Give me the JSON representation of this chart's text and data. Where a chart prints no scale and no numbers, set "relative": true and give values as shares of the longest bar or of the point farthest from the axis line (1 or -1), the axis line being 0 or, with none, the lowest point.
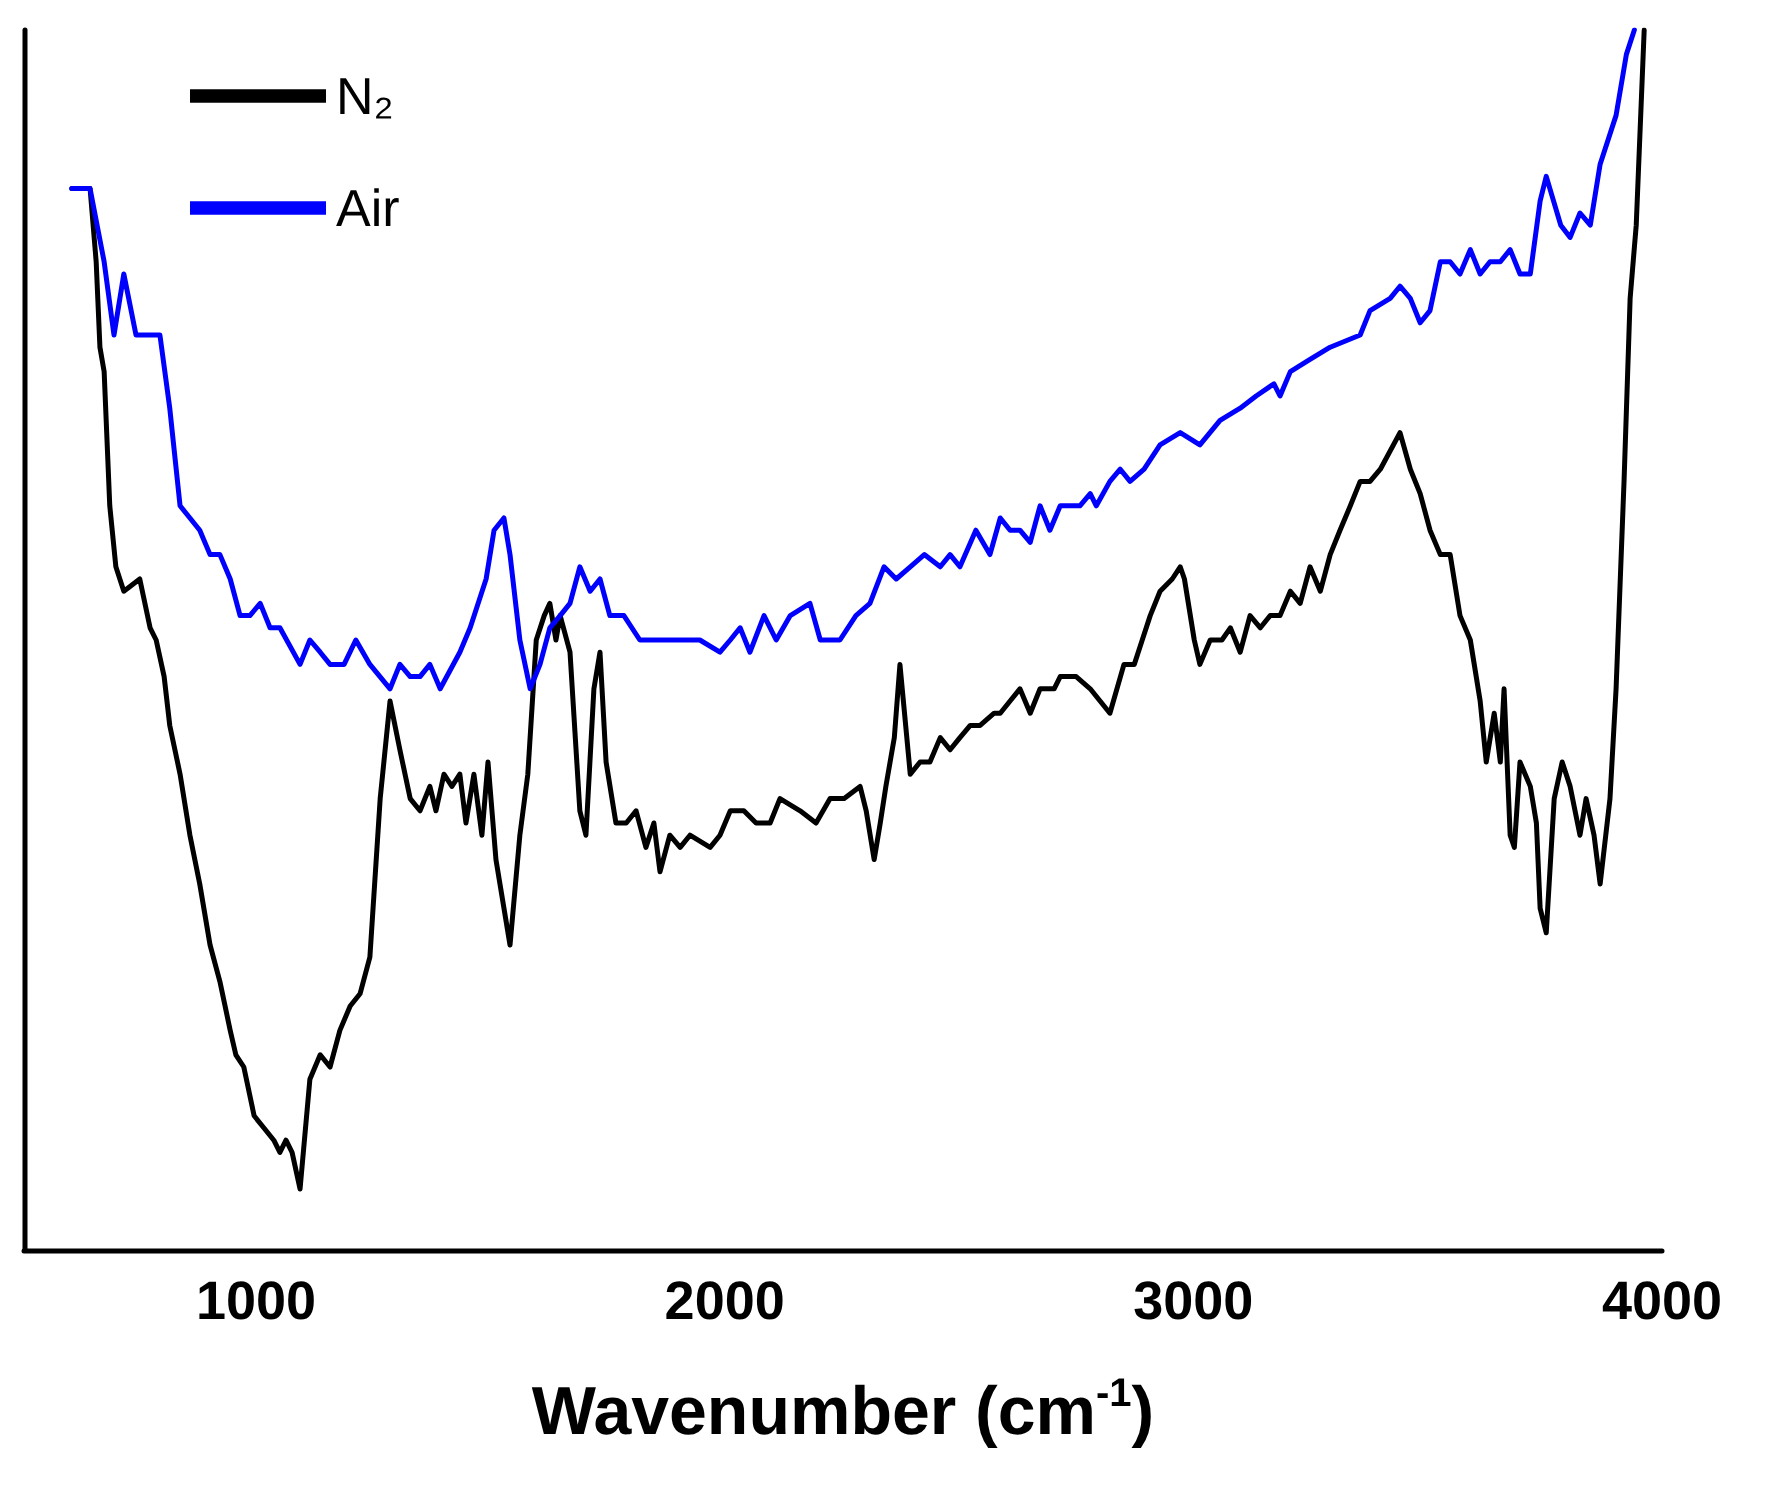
{
  "chart_data": {
    "type": "line",
    "relative": true,
    "xlabel": "Wavenumber (cm$^{-1}$)",
    "xlim": [
      505,
      4000
    ],
    "xticks": [
      1000,
      2000,
      3000,
      4000
    ],
    "legend": "top left",
    "marker": "none",
    "line_style": "solid",
    "grid": false,
    "series": [
      {
        "name": "N₂",
        "color": "#000000",
        "x": [
          607,
          646,
          659,
          667,
          676,
          688,
          701,
          718,
          752,
          774,
          787,
          804,
          816,
          838,
          859,
          880,
          902,
          923,
          945,
          957,
          974,
          996,
          1017,
          1038,
          1051,
          1064,
          1077,
          1094,
          1115,
          1137,
          1158,
          1179,
          1201,
          1222,
          1243,
          1265,
          1286,
          1307,
          1329,
          1350,
          1371,
          1384,
          1401,
          1418,
          1435,
          1448,
          1465,
          1482,
          1495,
          1512,
          1542,
          1563,
          1580,
          1598,
          1615,
          1627,
          1640,
          1649,
          1670,
          1691,
          1704,
          1721,
          1734,
          1747,
          1768,
          1790,
          1811,
          1832,
          1849,
          1862,
          1883,
          1905,
          1926,
          1969,
          1990,
          2012,
          2041,
          2067,
          2097,
          2118,
          2161,
          2195,
          2225,
          2255,
          2289,
          2302,
          2319,
          2332,
          2344,
          2362,
          2374,
          2396,
          2417,
          2438,
          2460,
          2481,
          2502,
          2524,
          2545,
          2575,
          2588,
          2609,
          2630,
          2652,
          2673,
          2703,
          2716,
          2750,
          2780,
          2801,
          2822,
          2852,
          2874,
          2891,
          2908,
          2929,
          2955,
          2972,
          2981,
          3002,
          3014,
          3036,
          3061,
          3079,
          3100,
          3121,
          3143,
          3164,
          3185,
          3207,
          3228,
          3249,
          3271,
          3292,
          3313,
          3335,
          3356,
          3377,
          3399,
          3441,
          3463,
          3484,
          3505,
          3527,
          3548,
          3569,
          3591,
          3612,
          3625,
          3642,
          3655,
          3663,
          3676,
          3685,
          3697,
          3719,
          3732,
          3740,
          3753,
          3770,
          3787,
          3804,
          3825,
          3838,
          3855,
          3868,
          3889,
          3902,
          3919,
          3932,
          3945,
          3962
        ],
        "values": [
          0.87,
          0.87,
          0.81,
          0.74,
          0.72,
          0.61,
          0.56,
          0.54,
          0.55,
          0.51,
          0.5,
          0.47,
          0.43,
          0.39,
          0.34,
          0.3,
          0.25,
          0.22,
          0.18,
          0.16,
          0.15,
          0.11,
          0.1,
          0.09,
          0.08,
          0.09,
          0.08,
          0.05,
          0.14,
          0.16,
          0.15,
          0.18,
          0.2,
          0.21,
          0.24,
          0.37,
          0.45,
          0.41,
          0.37,
          0.36,
          0.38,
          0.36,
          0.39,
          0.38,
          0.39,
          0.35,
          0.39,
          0.34,
          0.4,
          0.32,
          0.25,
          0.34,
          0.39,
          0.5,
          0.52,
          0.53,
          0.5,
          0.52,
          0.49,
          0.36,
          0.34,
          0.46,
          0.49,
          0.4,
          0.35,
          0.35,
          0.36,
          0.33,
          0.35,
          0.31,
          0.34,
          0.33,
          0.34,
          0.33,
          0.34,
          0.36,
          0.36,
          0.35,
          0.35,
          0.37,
          0.36,
          0.35,
          0.37,
          0.37,
          0.38,
          0.36,
          0.32,
          0.35,
          0.38,
          0.42,
          0.48,
          0.39,
          0.4,
          0.4,
          0.42,
          0.41,
          0.42,
          0.43,
          0.43,
          0.44,
          0.44,
          0.45,
          0.46,
          0.44,
          0.46,
          0.46,
          0.47,
          0.47,
          0.46,
          0.45,
          0.44,
          0.48,
          0.48,
          0.5,
          0.52,
          0.54,
          0.55,
          0.56,
          0.55,
          0.5,
          0.48,
          0.5,
          0.5,
          0.51,
          0.49,
          0.52,
          0.51,
          0.52,
          0.52,
          0.54,
          0.53,
          0.56,
          0.54,
          0.57,
          0.59,
          0.61,
          0.63,
          0.63,
          0.64,
          0.67,
          0.64,
          0.62,
          0.59,
          0.57,
          0.57,
          0.52,
          0.5,
          0.45,
          0.4,
          0.44,
          0.4,
          0.46,
          0.34,
          0.33,
          0.4,
          0.38,
          0.35,
          0.28,
          0.26,
          0.37,
          0.4,
          0.38,
          0.34,
          0.37,
          0.34,
          0.3,
          0.37,
          0.46,
          0.63,
          0.78,
          0.84,
          1.0
        ]
      },
      {
        "name": "Air",
        "color": "#0000ff",
        "x": [
          607,
          646,
          676,
          697,
          718,
          744,
          774,
          795,
          816,
          838,
          859,
          880,
          902,
          923,
          945,
          966,
          987,
          1009,
          1030,
          1051,
          1094,
          1115,
          1137,
          1158,
          1188,
          1213,
          1243,
          1286,
          1307,
          1329,
          1350,
          1371,
          1393,
          1435,
          1457,
          1491,
          1508,
          1529,
          1542,
          1563,
          1585,
          1606,
          1627,
          1649,
          1670,
          1691,
          1713,
          1734,
          1755,
          1785,
          1819,
          1862,
          1905,
          1947,
          1990,
          2012,
          2033,
          2054,
          2084,
          2110,
          2140,
          2182,
          2204,
          2246,
          2280,
          2310,
          2340,
          2366,
          2396,
          2426,
          2460,
          2481,
          2502,
          2536,
          2566,
          2588,
          2609,
          2630,
          2652,
          2673,
          2694,
          2716,
          2758,
          2780,
          2793,
          2822,
          2844,
          2865,
          2895,
          2929,
          2972,
          3014,
          3057,
          3100,
          3134,
          3172,
          3185,
          3207,
          3249,
          3292,
          3356,
          3377,
          3420,
          3441,
          3463,
          3484,
          3505,
          3527,
          3548,
          3569,
          3591,
          3612,
          3633,
          3655,
          3676,
          3697,
          3719,
          3740,
          3753,
          3784,
          3804,
          3825,
          3847,
          3868,
          3902,
          3924,
          3941
        ],
        "values": [
          0.87,
          0.87,
          0.81,
          0.75,
          0.8,
          0.75,
          0.75,
          0.75,
          0.69,
          0.61,
          0.6,
          0.59,
          0.57,
          0.57,
          0.55,
          0.52,
          0.52,
          0.53,
          0.51,
          0.51,
          0.48,
          0.5,
          0.49,
          0.48,
          0.48,
          0.5,
          0.48,
          0.46,
          0.48,
          0.47,
          0.47,
          0.48,
          0.46,
          0.49,
          0.51,
          0.55,
          0.59,
          0.6,
          0.57,
          0.5,
          0.46,
          0.48,
          0.51,
          0.52,
          0.53,
          0.56,
          0.54,
          0.55,
          0.52,
          0.52,
          0.5,
          0.5,
          0.5,
          0.5,
          0.49,
          0.5,
          0.51,
          0.49,
          0.52,
          0.5,
          0.52,
          0.53,
          0.5,
          0.5,
          0.52,
          0.53,
          0.56,
          0.55,
          0.56,
          0.57,
          0.56,
          0.57,
          0.56,
          0.59,
          0.57,
          0.6,
          0.59,
          0.59,
          0.58,
          0.61,
          0.59,
          0.61,
          0.61,
          0.62,
          0.61,
          0.63,
          0.64,
          0.63,
          0.64,
          0.66,
          0.67,
          0.66,
          0.68,
          0.69,
          0.7,
          0.71,
          0.7,
          0.72,
          0.73,
          0.74,
          0.75,
          0.77,
          0.78,
          0.79,
          0.78,
          0.76,
          0.77,
          0.81,
          0.81,
          0.8,
          0.82,
          0.8,
          0.81,
          0.81,
          0.82,
          0.8,
          0.8,
          0.86,
          0.88,
          0.84,
          0.83,
          0.85,
          0.84,
          0.89,
          0.93,
          0.98,
          1.0
        ]
      }
    ]
  }
}
